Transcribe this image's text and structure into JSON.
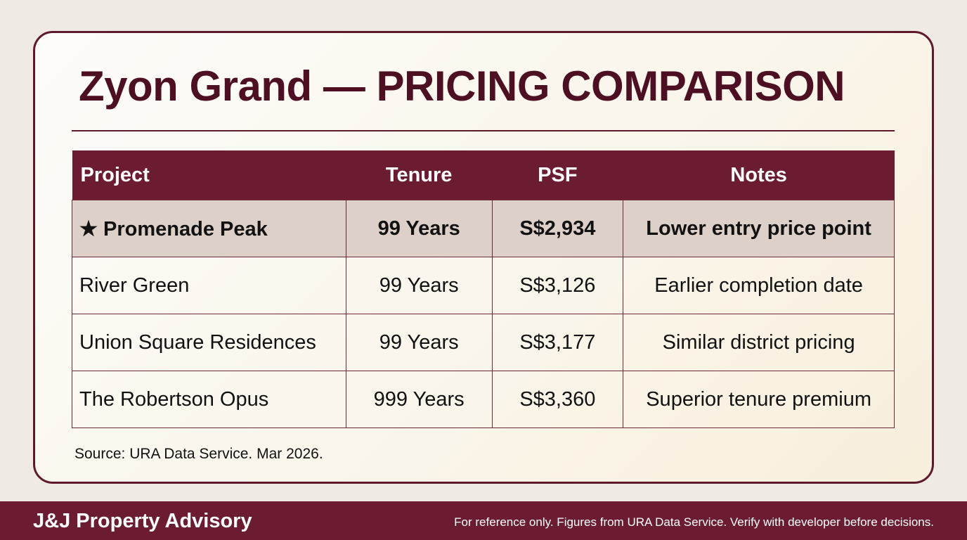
{
  "title": "Zyon Grand — PRICING COMPARISON",
  "table": {
    "headers": [
      "Project",
      "Tenure",
      "PSF",
      "Notes"
    ],
    "rows": [
      {
        "project": "★ Promenade Peak",
        "tenure": "99 Years",
        "psf": "S$2,934",
        "notes": "Lower entry price point",
        "highlighted": true
      },
      {
        "project": "River Green",
        "tenure": "99 Years",
        "psf": "S$3,126",
        "notes": "Earlier completion date",
        "highlighted": false
      },
      {
        "project": "Union Square Residences",
        "tenure": "99 Years",
        "psf": "S$3,177",
        "notes": "Similar district pricing",
        "highlighted": false
      },
      {
        "project": "The Robertson Opus",
        "tenure": "999 Years",
        "psf": "S$3,360",
        "notes": "Superior tenure premium",
        "highlighted": false
      }
    ]
  },
  "source": "Source: URA Data Service. Mar 2026.",
  "footer": {
    "brand": "J&J Property Advisory",
    "disclaimer": "For reference only. Figures from URA Data Service. Verify with developer before decisions."
  },
  "colors": {
    "accent": "#6b1c30",
    "title": "#4d1022",
    "highlight_row": "#dcd0c8"
  }
}
